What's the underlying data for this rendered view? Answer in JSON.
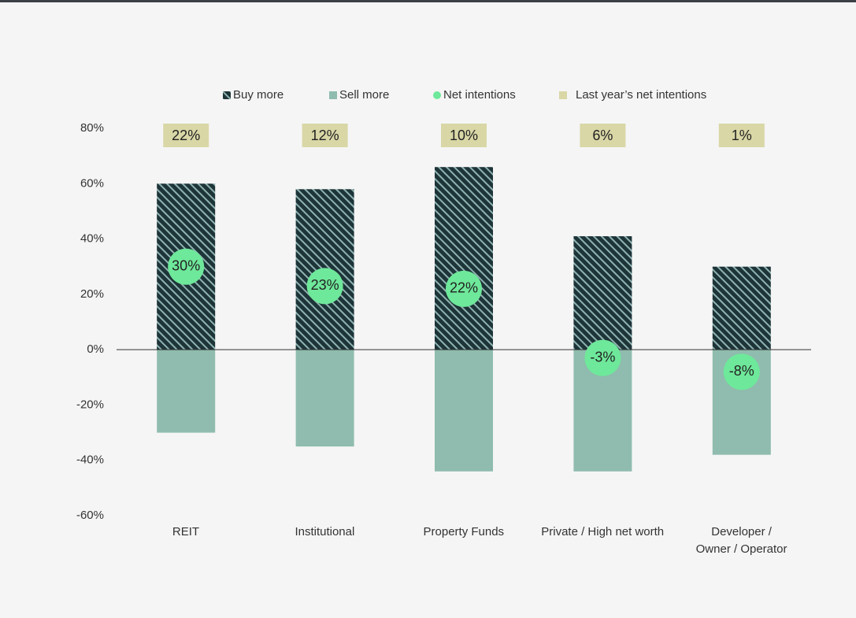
{
  "chart_data": {
    "type": "bar",
    "categories": [
      "REIT",
      "Institutional",
      "Property Funds",
      "Private / High net worth",
      "Developer /\nOwner / Operator"
    ],
    "series": [
      {
        "name": "Buy more",
        "color": "#1d3438",
        "values": [
          60,
          58,
          66,
          41,
          30
        ]
      },
      {
        "name": "Sell more",
        "color": "#8fbcae",
        "values": [
          -30,
          -35,
          -44,
          -44,
          -38
        ]
      },
      {
        "name": "Net intentions",
        "color": "#6ee89a",
        "values": [
          30,
          23,
          22,
          -3,
          -8
        ],
        "value_labels": [
          "30%",
          "23%",
          "22%",
          "-3%",
          "-8%"
        ]
      },
      {
        "name": "Last year’s net intentions",
        "color": "#d9d7a6",
        "values": [
          22,
          12,
          10,
          6,
          1
        ],
        "value_labels": [
          "22%",
          "12%",
          "10%",
          "6%",
          "1%"
        ]
      }
    ],
    "ylim": [
      -60,
      80
    ],
    "yticks": [
      {
        "value": -60,
        "label": "-60%"
      },
      {
        "value": -40,
        "label": "-40%"
      },
      {
        "value": -20,
        "label": "-20%"
      },
      {
        "value": 0,
        "label": "0%"
      },
      {
        "value": 20,
        "label": "20%"
      },
      {
        "value": 40,
        "label": "40%"
      },
      {
        "value": 60,
        "label": "60%"
      },
      {
        "value": 80,
        "label": "80%"
      }
    ],
    "grid": false
  }
}
